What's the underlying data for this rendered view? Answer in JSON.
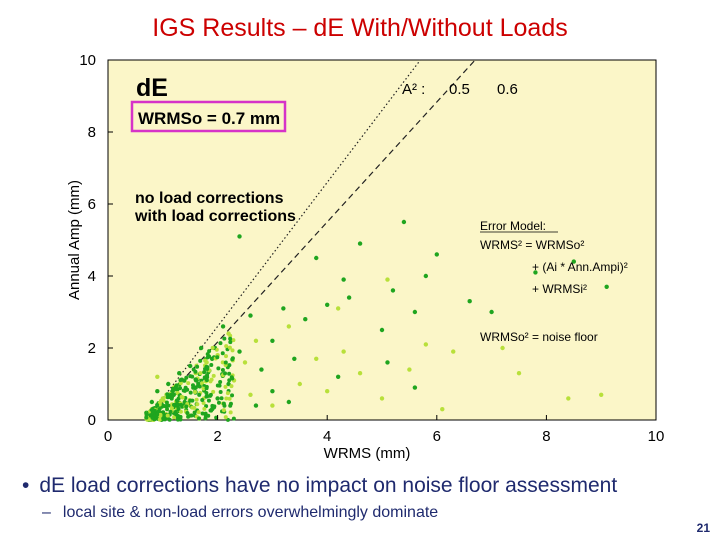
{
  "slide": {
    "title": "IGS Results – dE With/Without Loads",
    "bullet_main": "dE load corrections have no impact on noise floor assessment",
    "bullet_sub": "local site & non-load errors overwhelmingly dominate",
    "page_number": "21"
  },
  "colors": {
    "title": "#cc0000",
    "plot_bg": "#fbf6c8",
    "no_load": "#1fa51f",
    "with_load": "#b8e03a",
    "highlight_box": "#d633c8",
    "bullet_text": "#1f2a6e"
  },
  "chart_data": {
    "type": "scatter",
    "title": "dE",
    "xlabel": "WRMS (mm)",
    "ylabel": "Annual Amp (mm)",
    "xlim": [
      0,
      10
    ],
    "ylim": [
      0,
      10
    ],
    "xticks": [
      "0",
      "2",
      "4",
      "6",
      "8",
      "10"
    ],
    "yticks": [
      "0",
      "2",
      "4",
      "6",
      "8",
      "10"
    ],
    "panel_label": "dE",
    "noise_box_label": "WRMSo = 0.7 mm",
    "legend": [
      {
        "name": "no load corrections",
        "color": "#1fa51f"
      },
      {
        "name": "with load corrections",
        "color": "#b8e03a"
      }
    ],
    "reference_lines": [
      {
        "name": "A² = 0.5",
        "slope": 0.5,
        "style": "dotted",
        "label_value": "0.5"
      },
      {
        "name": "A² = 0.6",
        "slope": 0.6,
        "style": "dashed",
        "label_value": "0.6"
      }
    ],
    "reference_prefix": "A² :",
    "noise_floor_wrms": 0.7,
    "error_model": {
      "heading": "Error Model",
      "line1": "WRMS² = WRMSo²",
      "line2": "+ (Ai * Ann.Ampi)²",
      "line3": "+ WRMSi²",
      "footer": "WRMSo² = noise floor"
    },
    "series": [
      {
        "name": "with load corrections",
        "points": [
          [
            0.8,
            0.3
          ],
          [
            1.0,
            0.6
          ],
          [
            1.2,
            0.9
          ],
          [
            1.4,
            1.1
          ],
          [
            1.6,
            1.3
          ],
          [
            1.8,
            1.6
          ],
          [
            2.0,
            1.8
          ],
          [
            2.3,
            1.1
          ],
          [
            2.6,
            0.7
          ],
          [
            3.0,
            0.4
          ],
          [
            3.5,
            1.0
          ],
          [
            4.0,
            0.8
          ],
          [
            4.3,
            1.9
          ],
          [
            4.6,
            1.3
          ],
          [
            5.0,
            0.6
          ],
          [
            5.5,
            1.4
          ],
          [
            6.1,
            0.3
          ],
          [
            6.3,
            1.9
          ],
          [
            7.2,
            2.0
          ],
          [
            7.5,
            1.3
          ],
          [
            8.4,
            0.6
          ],
          [
            9.0,
            0.7
          ],
          [
            2.2,
            2.4
          ],
          [
            2.7,
            2.2
          ],
          [
            3.3,
            2.6
          ],
          [
            4.2,
            3.1
          ],
          [
            5.1,
            3.9
          ],
          [
            0.9,
            1.2
          ],
          [
            1.5,
            0.4
          ],
          [
            2.5,
            1.6
          ],
          [
            3.8,
            1.7
          ],
          [
            5.8,
            2.1
          ]
        ]
      },
      {
        "name": "no load corrections",
        "points": [
          [
            0.7,
            0.2
          ],
          [
            0.8,
            0.5
          ],
          [
            0.9,
            0.8
          ],
          [
            1.0,
            0.4
          ],
          [
            1.1,
            1.0
          ],
          [
            1.2,
            0.7
          ],
          [
            1.3,
            1.3
          ],
          [
            1.4,
            0.5
          ],
          [
            1.5,
            1.5
          ],
          [
            1.6,
            0.9
          ],
          [
            1.7,
            2.0
          ],
          [
            1.8,
            1.2
          ],
          [
            1.9,
            1.7
          ],
          [
            2.0,
            0.6
          ],
          [
            2.1,
            2.6
          ],
          [
            2.2,
            1.0
          ],
          [
            2.4,
            1.9
          ],
          [
            2.6,
            2.9
          ],
          [
            2.8,
            1.4
          ],
          [
            3.0,
            2.2
          ],
          [
            3.2,
            3.1
          ],
          [
            3.4,
            1.7
          ],
          [
            3.6,
            2.8
          ],
          [
            3.8,
            4.5
          ],
          [
            4.0,
            3.2
          ],
          [
            4.3,
            3.9
          ],
          [
            4.4,
            3.4
          ],
          [
            4.6,
            4.9
          ],
          [
            5.0,
            2.5
          ],
          [
            5.2,
            3.6
          ],
          [
            5.6,
            3.0
          ],
          [
            5.8,
            4.0
          ],
          [
            6.0,
            4.6
          ],
          [
            6.6,
            3.3
          ],
          [
            7.0,
            3.0
          ],
          [
            7.8,
            4.1
          ],
          [
            8.5,
            4.4
          ],
          [
            9.1,
            3.7
          ],
          [
            3.0,
            0.8
          ],
          [
            3.3,
            0.5
          ],
          [
            4.2,
            1.2
          ],
          [
            5.1,
            1.6
          ],
          [
            5.6,
            0.9
          ],
          [
            2.4,
            5.1
          ],
          [
            5.4,
            5.5
          ],
          [
            1.2,
            0.2
          ],
          [
            1.9,
            0.3
          ],
          [
            2.7,
            0.4
          ]
        ]
      }
    ]
  }
}
